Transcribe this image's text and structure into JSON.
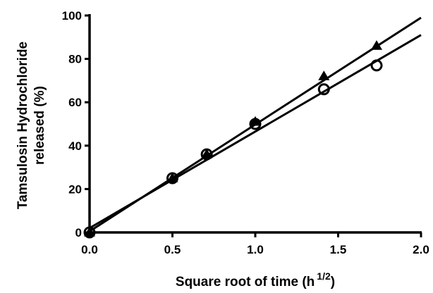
{
  "chart_data": {
    "type": "scatter",
    "xlabel": "Square root of time (h",
    "xlabel_superscript": "1/2",
    "xlabel_suffix": ")",
    "ylabel_line1": "Tamsulosin Hydrochloride",
    "ylabel_line2": "released (%)",
    "xlim": [
      0.0,
      2.0
    ],
    "ylim": [
      0,
      100
    ],
    "x_ticks": [
      "0.0",
      "0.5",
      "1.0",
      "1.5",
      "2.0"
    ],
    "y_ticks": [
      "0",
      "20",
      "40",
      "60",
      "80",
      "100"
    ],
    "grid": false,
    "series": [
      {
        "marker": "triangle",
        "x": [
          0.0,
          0.5,
          0.707,
          1.0,
          1.414,
          1.732
        ],
        "y": [
          0,
          25,
          36,
          51,
          72,
          86
        ],
        "fit_line": [
          [
            0.0,
            0.5
          ],
          [
            2.0,
            99
          ]
        ]
      },
      {
        "marker": "circle",
        "x": [
          0.0,
          0.5,
          0.707,
          1.0,
          1.414,
          1.732
        ],
        "y": [
          0,
          25,
          36,
          50,
          66,
          77
        ],
        "fit_line": [
          [
            0.0,
            2
          ],
          [
            2.0,
            91
          ]
        ]
      }
    ],
    "colors": {
      "axis": "#000000",
      "marker": "#000000",
      "background": "#ffffff"
    }
  }
}
